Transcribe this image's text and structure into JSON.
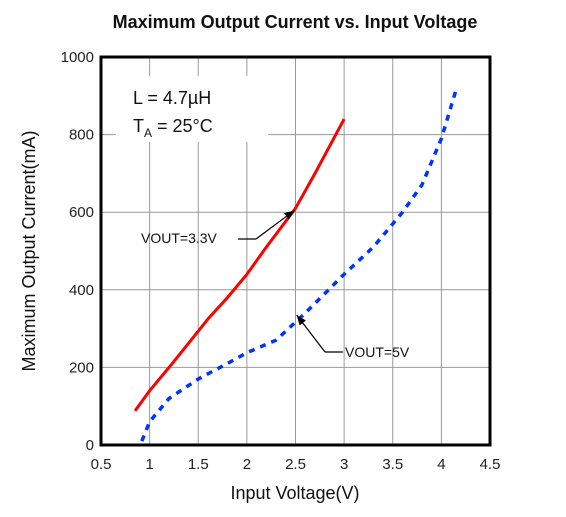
{
  "chart_data": {
    "type": "line",
    "title": "Maximum Output Current vs. Input Voltage",
    "xlabel": "Input Voltage(V)",
    "ylabel": "Maximum Output Current(mA)",
    "xlim": [
      0.5,
      4.5
    ],
    "ylim": [
      0,
      1000
    ],
    "xticks": [
      0.5,
      1,
      1.5,
      2,
      2.5,
      3,
      3.5,
      4,
      4.5
    ],
    "xtick_labels": [
      "0.5",
      "1",
      "1.5",
      "2",
      "2.5",
      "3",
      "3.5",
      "4",
      "4.5"
    ],
    "yticks": [
      0,
      200,
      400,
      600,
      800,
      1000
    ],
    "ytick_labels": [
      "0",
      "200",
      "400",
      "600",
      "800",
      "1000"
    ],
    "grid": true,
    "conditions": {
      "line1": "L = 4.7µH",
      "line2_main": "T",
      "line2_sub": "A",
      "line2_rest": " = 25°C"
    },
    "series": [
      {
        "name": "VOUT=3.3V",
        "color": "#ff0000",
        "style": "solid",
        "x": [
          0.85,
          1.0,
          1.2,
          1.4,
          1.6,
          1.8,
          2.0,
          2.2,
          2.5,
          2.7,
          3.0
        ],
        "y": [
          88,
          140,
          200,
          262,
          325,
          380,
          440,
          510,
          610,
          700,
          840
        ]
      },
      {
        "name": "VOUT=5V",
        "color": "#0033ff",
        "style": "dotted",
        "x": [
          0.92,
          1.0,
          1.2,
          1.5,
          1.8,
          2.0,
          2.3,
          2.6,
          2.8,
          3.0,
          3.3,
          3.6,
          3.8,
          4.0,
          4.15
        ],
        "y": [
          10,
          60,
          120,
          170,
          210,
          238,
          270,
          340,
          390,
          440,
          510,
          600,
          670,
          790,
          915
        ]
      }
    ],
    "annotations": [
      {
        "text": "VOUT=3.3V",
        "series": 0,
        "point": [
          2.5,
          610
        ]
      },
      {
        "text": "VOUT=5V",
        "series": 1,
        "point": [
          2.45,
          330
        ]
      }
    ]
  }
}
